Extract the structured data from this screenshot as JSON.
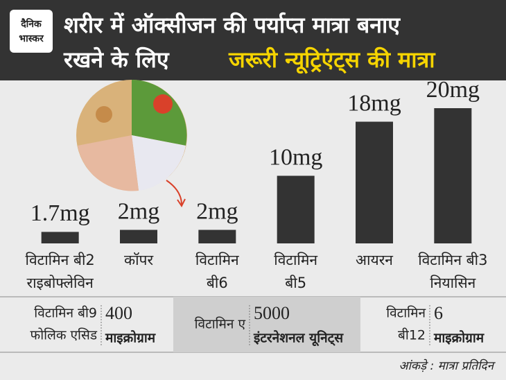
{
  "logo": [
    "दैनिक",
    "भास्कर"
  ],
  "chart_data": {
    "type": "bar",
    "title": [
      "शरीर में ऑक्सीजन की पर्याप्त मात्रा बनाए",
      "रखने के लिए"
    ],
    "title_highlight": "जरूरी न्यूट्रिएंट्स की मात्रा",
    "categories": [
      [
        "विटामिन बी2",
        "राइबोफ्लेविन"
      ],
      [
        "कॉपर"
      ],
      [
        "विटामिन",
        "बी6"
      ],
      [
        "विटामिन",
        "बी5"
      ],
      [
        "आयरन"
      ],
      [
        "विटामिन बी3",
        "नियासिन"
      ]
    ],
    "values": [
      1.7,
      2,
      2,
      10,
      18,
      20
    ],
    "value_labels": [
      "1.7mg",
      "2mg",
      "2mg",
      "10mg",
      "18mg",
      "20mg"
    ],
    "color": "#333333",
    "ylim": [
      0,
      20
    ]
  },
  "table": {
    "cells": [
      {
        "name": [
          "विटामिन बी9",
          "फोलिक एसिड"
        ],
        "value": 400,
        "unit": "माइक्रोग्राम"
      },
      {
        "name": [
          "विटामिन ए"
        ],
        "value": 5000,
        "unit": "इंटरनेशनल यूनिट्स"
      },
      {
        "name": [
          "विटामिन",
          "बी12"
        ],
        "value": 6,
        "unit": "माइक्रोग्राम"
      }
    ]
  },
  "source": "आंकड़े : मात्रा प्रतिदिन"
}
